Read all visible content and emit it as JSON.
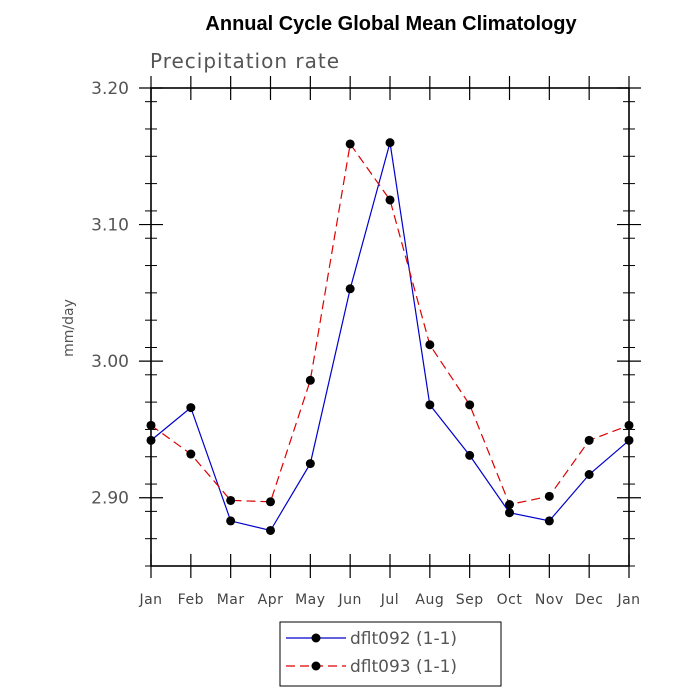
{
  "chart_data": {
    "type": "line",
    "title": "Annual Cycle Global Mean Climatology",
    "subtitle": "Precipitation rate",
    "xlabel": "",
    "ylabel": "mm/day",
    "categories": [
      "Jan",
      "Feb",
      "Mar",
      "Apr",
      "May",
      "Jun",
      "Jul",
      "Aug",
      "Sep",
      "Oct",
      "Nov",
      "Dec",
      "Jan"
    ],
    "ylim": [
      2.85,
      3.2
    ],
    "yticks": [
      2.9,
      3.0,
      3.1,
      3.2
    ],
    "ytick_labels": [
      "2.90",
      "3.00",
      "3.10",
      "3.20"
    ],
    "yminor_step": 0.02,
    "grid": false,
    "legend_position": "bottom-center",
    "series": [
      {
        "name": "dflt092 (1-1)",
        "color": "#0000cc",
        "line_style": "solid",
        "marker": "filled-circle",
        "values": [
          2.942,
          2.966,
          2.883,
          2.876,
          2.925,
          3.053,
          3.16,
          2.968,
          2.931,
          2.889,
          2.883,
          2.917,
          2.942
        ]
      },
      {
        "name": "dflt093 (1-1)",
        "color": "#dd0000",
        "line_style": "dashed",
        "marker": "filled-circle",
        "values": [
          2.953,
          2.932,
          2.898,
          2.897,
          2.986,
          3.159,
          3.118,
          3.012,
          2.968,
          2.895,
          2.901,
          2.942,
          2.953
        ]
      }
    ]
  }
}
